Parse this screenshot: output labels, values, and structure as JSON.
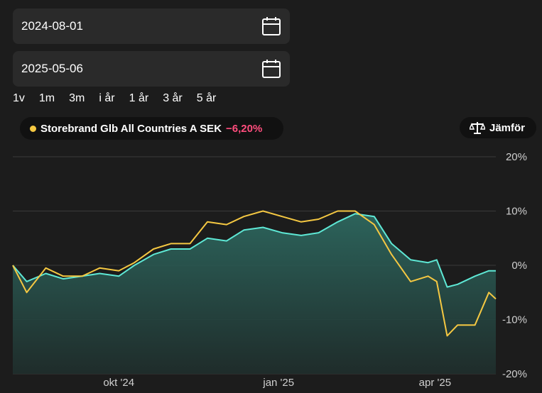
{
  "date_from": {
    "value": "2024-08-01",
    "icon": "calendar-icon"
  },
  "date_to": {
    "value": "2025-05-06",
    "icon": "calendar-icon"
  },
  "ranges": [
    "1v",
    "1m",
    "3m",
    "i år",
    "1 år",
    "3 år",
    "5 år"
  ],
  "series_chip": {
    "label": "Storebrand Glb All Countries A SEK",
    "change": "−6,20%",
    "dot_color": "#f5c842",
    "change_color": "#ff4d7d"
  },
  "compare_button": {
    "label": "Jämför",
    "icon": "scale-icon"
  },
  "colors": {
    "background": "#1c1c1c",
    "fund_line": "#f5c842",
    "index_line": "#5ee8d5",
    "area_top": "#2e6b62",
    "gridline": "#3a3a3a"
  },
  "chart_data": {
    "type": "line",
    "title": "",
    "xlabel": "",
    "ylabel": "",
    "x": [
      "2024-08-01",
      "2024-08-09",
      "2024-08-20",
      "2024-08-30",
      "2024-09-10",
      "2024-09-20",
      "2024-10-01",
      "2024-10-10",
      "2024-10-21",
      "2024-10-31",
      "2024-11-11",
      "2024-11-21",
      "2024-12-02",
      "2024-12-12",
      "2024-12-23",
      "2025-01-03",
      "2025-01-14",
      "2025-01-24",
      "2025-02-04",
      "2025-02-14",
      "2025-02-25",
      "2025-03-07",
      "2025-03-18",
      "2025-03-28",
      "2025-04-02",
      "2025-04-08",
      "2025-04-14",
      "2025-04-24",
      "2025-05-02",
      "2025-05-06"
    ],
    "x_ticks": [
      "okt '24",
      "jan '25",
      "apr '25"
    ],
    "x_tick_dates": [
      "2024-10-01",
      "2025-01-01",
      "2025-04-01"
    ],
    "y_ticks": [
      "20%",
      "10%",
      "0%",
      "-10%",
      "-20%"
    ],
    "y_tick_values": [
      20,
      10,
      0,
      -10,
      -20
    ],
    "ylim": [
      -20,
      20
    ],
    "grid": true,
    "series": [
      {
        "name": "Storebrand Glb All Countries A SEK",
        "color": "#f5c842",
        "values": [
          0,
          -5,
          -0.5,
          -2,
          -2,
          -0.5,
          -1,
          0.5,
          3,
          4,
          4,
          8,
          7.5,
          9,
          10,
          9,
          8,
          8.5,
          10,
          10,
          7.5,
          2,
          -3,
          -2,
          -3,
          -13,
          -11,
          -11,
          -5,
          -6.2
        ]
      },
      {
        "name": "",
        "color": "#5ee8d5",
        "area": true,
        "values": [
          0,
          -3,
          -1.5,
          -2.5,
          -2,
          -1.5,
          -2,
          0,
          2,
          3,
          3,
          5,
          4.5,
          6.5,
          7,
          6,
          5.5,
          6,
          8,
          9.5,
          9,
          4,
          1,
          0.5,
          1,
          -4,
          -3.5,
          -2,
          -1,
          -1
        ]
      }
    ]
  }
}
